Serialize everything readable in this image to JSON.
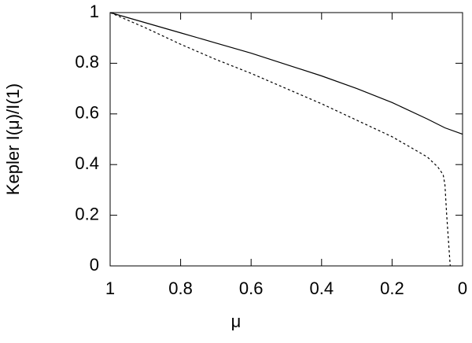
{
  "chart_data": {
    "type": "line",
    "xlabel": "μ",
    "ylabel": "Kepler I(μ)/I(1)",
    "xlim": [
      1,
      0
    ],
    "ylim": [
      0,
      1
    ],
    "xticks": [
      1,
      0.8,
      0.6,
      0.4,
      0.2,
      0
    ],
    "yticks": [
      0,
      0.2,
      0.4,
      0.6,
      0.8,
      1
    ],
    "series": [
      {
        "color": "#000000",
        "dash": "solid",
        "x": [
          1,
          0.9,
          0.8,
          0.7,
          0.6,
          0.5,
          0.4,
          0.3,
          0.2,
          0.1,
          0.05,
          0
        ],
        "values": [
          1,
          0.96,
          0.92,
          0.88,
          0.84,
          0.795,
          0.75,
          0.7,
          0.645,
          0.58,
          0.545,
          0.52
        ]
      },
      {
        "color": "#000000",
        "dash": "dashed",
        "x": [
          1,
          0.9,
          0.8,
          0.7,
          0.6,
          0.5,
          0.4,
          0.3,
          0.2,
          0.1,
          0.07,
          0.055,
          0.05,
          0.045,
          0.04,
          0.035
        ],
        "values": [
          1,
          0.94,
          0.875,
          0.815,
          0.76,
          0.7,
          0.64,
          0.575,
          0.51,
          0.43,
          0.39,
          0.36,
          0.32,
          0.2,
          0.1,
          0
        ]
      }
    ]
  }
}
